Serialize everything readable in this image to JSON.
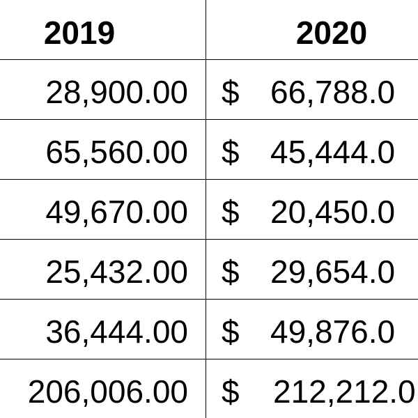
{
  "table": {
    "headers": {
      "year_2019": "2019",
      "year_2020": "2020"
    },
    "rows": [
      {
        "y2019": "28,900.00",
        "currency": "$",
        "y2020": "66,788.0"
      },
      {
        "y2019": "65,560.00",
        "currency": "$",
        "y2020": "45,444.0"
      },
      {
        "y2019": "49,670.00",
        "currency": "$",
        "y2020": "20,450.0"
      },
      {
        "y2019": "25,432.00",
        "currency": "$",
        "y2020": "29,654.0"
      },
      {
        "y2019": "36,444.00",
        "currency": "$",
        "y2020": "49,876.0"
      },
      {
        "y2019": "206,006.00",
        "currency": "$",
        "y2020": "212,212.0"
      }
    ]
  }
}
